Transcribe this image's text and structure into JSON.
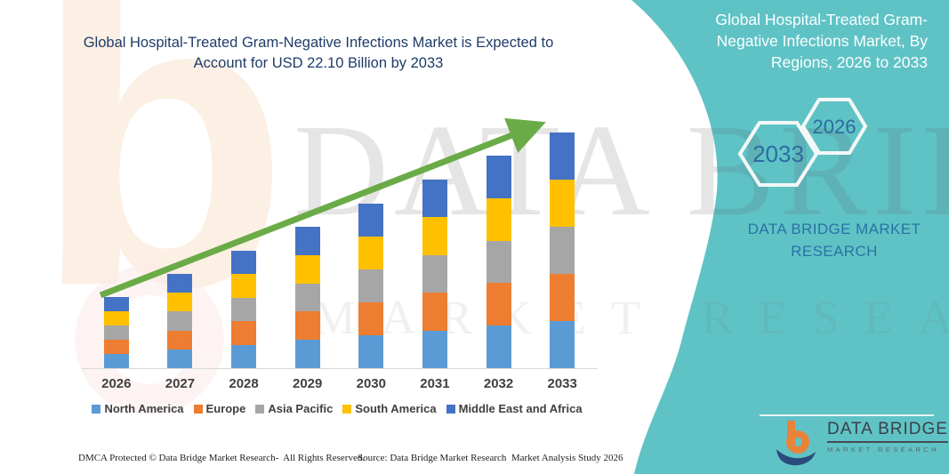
{
  "header": {
    "title": "Global Hospital-Treated Gram-Negative Infections Market is Expected to Account for USD 22.10 Billion by 2033"
  },
  "right_panel": {
    "heading": "Global Hospital-Treated Gram-Negative Infections Market, By Regions, 2026 to 2033",
    "hexagon_back_label": "2033",
    "hexagon_front_label": "2026",
    "brand_text": "DATA BRIDGE MARKET RESEARCH",
    "panel_color": "#5fc3c6",
    "brand_text_color": "#2a72a4",
    "logo": {
      "name": "DATA BRIDGE",
      "tagline": "MARKET RESEARCH"
    }
  },
  "watermark": {
    "line1": "DATA BRIDGE",
    "line2": "MARKET RESEARCH"
  },
  "footer": {
    "dmca": "DMCA Protected © Data Bridge Market Research-  All Rights Reserved.",
    "source": "Source: Data Bridge Market Research  Market Analysis Study 2026"
  },
  "chart_data": {
    "type": "bar",
    "stacked": true,
    "unit": "USD Billion",
    "title": "Global Hospital-Treated Gram-Negative Infections Market, By Regions, 2026 to 2033",
    "categories": [
      "2026",
      "2027",
      "2028",
      "2029",
      "2030",
      "2031",
      "2032",
      "2033"
    ],
    "series": [
      {
        "name": "North America",
        "color": "#5B9BD5",
        "values": [
          1.33,
          1.77,
          2.21,
          2.65,
          3.09,
          3.54,
          3.98,
          4.42
        ]
      },
      {
        "name": "Europe",
        "color": "#ED7D31",
        "values": [
          1.33,
          1.77,
          2.21,
          2.65,
          3.09,
          3.54,
          3.98,
          4.42
        ]
      },
      {
        "name": "Asia Pacific",
        "color": "#A6A6A6",
        "values": [
          1.33,
          1.77,
          2.21,
          2.65,
          3.09,
          3.54,
          3.98,
          4.42
        ]
      },
      {
        "name": "South America",
        "color": "#FFC000",
        "values": [
          1.33,
          1.77,
          2.21,
          2.65,
          3.09,
          3.54,
          3.98,
          4.42
        ]
      },
      {
        "name": "Middle East and Africa",
        "color": "#4472C4",
        "values": [
          1.33,
          1.77,
          2.21,
          2.65,
          3.09,
          3.54,
          3.98,
          4.42
        ]
      }
    ],
    "totals": [
      6.63,
      8.84,
      11.05,
      13.26,
      15.47,
      17.68,
      19.89,
      22.1
    ],
    "ylim": [
      0,
      22.1
    ],
    "gridlines": false,
    "legend_position": "bottom",
    "trend_arrow": true,
    "trend_arrow_color": "#6aab47",
    "baseline_color": "#d9d9d9"
  }
}
